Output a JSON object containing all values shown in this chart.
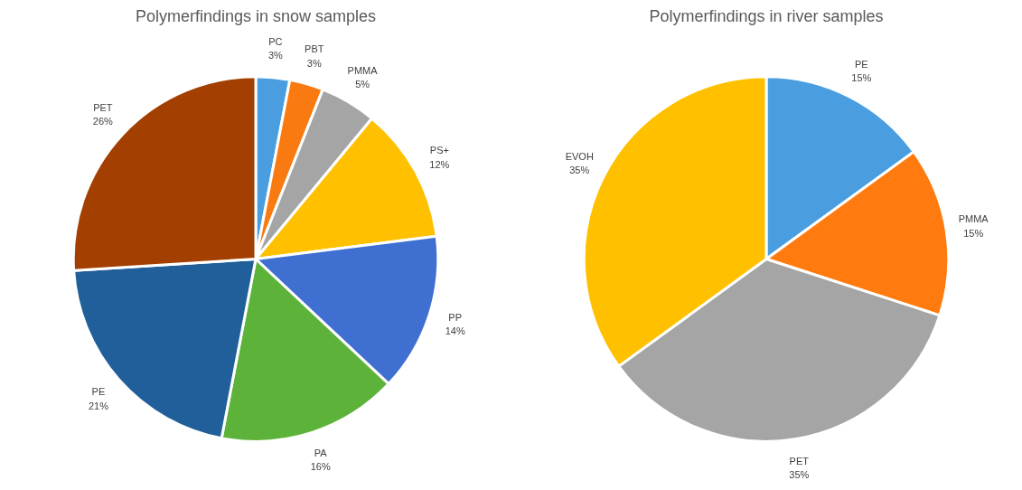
{
  "chart_data": [
    {
      "type": "pie",
      "title": "Polymerfindings in snow samples",
      "categories": [
        "PC",
        "PBT",
        "PMMA",
        "PS+",
        "PP",
        "PA",
        "PE",
        "PET"
      ],
      "values": [
        3,
        3,
        5,
        12,
        14,
        16,
        21,
        26
      ],
      "value_labels": [
        "3%",
        "3%",
        "5%",
        "12%",
        "14%",
        "16%",
        "21%",
        "26%"
      ],
      "colors": [
        "#4a9ee0",
        "#f97a10",
        "#a5a5a5",
        "#ffc000",
        "#3f6fd0",
        "#5db33a",
        "#215f9a",
        "#a33f00"
      ]
    },
    {
      "type": "pie",
      "title": "Polymerfindings in river samples",
      "categories": [
        "PE",
        "PMMA",
        "PET",
        "EVOH"
      ],
      "values": [
        15,
        15,
        35,
        35
      ],
      "value_labels": [
        "15%",
        "15%",
        "35%",
        "35%"
      ],
      "colors": [
        "#4a9ee0",
        "#ff7b0f",
        "#a5a5a5",
        "#ffc000"
      ]
    }
  ]
}
